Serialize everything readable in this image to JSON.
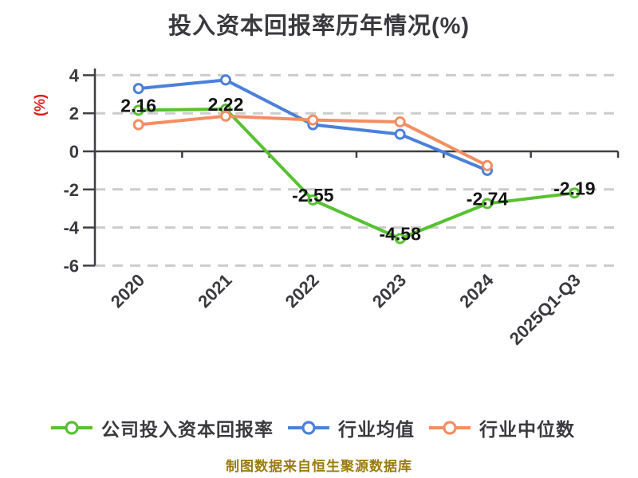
{
  "title": "投入资本回报率历年情况(%)",
  "source_note": "制图数据来自恒生聚源数据库",
  "colors": {
    "background": "#ffffff",
    "title_text": "#3a3a3e",
    "axis_text": "#3a3a3e",
    "axis_line": "#3f3f44",
    "grid_line": "#cccccc",
    "y_axis_unit_label": "#e31a1a",
    "data_label_text": "#141414",
    "source_text": "#9a7b10",
    "marker_fill": "#ffffff",
    "series_company": "#57c132",
    "series_industry_mean": "#4b80d9",
    "series_industry_median": "#f28e62"
  },
  "chart_data": {
    "type": "line",
    "title": "投入资本回报率历年情况(%)",
    "ylabel": "(%)",
    "xlabel": "",
    "categories": [
      "2020",
      "2021",
      "2022",
      "2023",
      "2024",
      "2025Q1-Q3"
    ],
    "y_ticks": [
      4,
      2,
      0,
      -2,
      -4,
      -6
    ],
    "ylim": [
      -6,
      4.4
    ],
    "grid": "horizontal dashed, zero line solid",
    "legend_position": "bottom",
    "x_label_rotation_deg": 45,
    "series": [
      {
        "name": "公司投入资本回报率",
        "color": "#57c132",
        "values": [
          2.16,
          2.22,
          -2.55,
          -4.58,
          -2.74,
          -2.19
        ],
        "labels": [
          "2.16",
          "2.22",
          "-2.55",
          "-4.58",
          "-2.74",
          "-2.19"
        ]
      },
      {
        "name": "行业均值",
        "color": "#4b80d9",
        "values": [
          3.3,
          3.75,
          1.4,
          0.9,
          -1.0,
          null
        ],
        "labels": []
      },
      {
        "name": "行业中位数",
        "color": "#f28e62",
        "values": [
          1.4,
          1.85,
          1.65,
          1.55,
          -0.75,
          null
        ],
        "labels": []
      }
    ]
  }
}
